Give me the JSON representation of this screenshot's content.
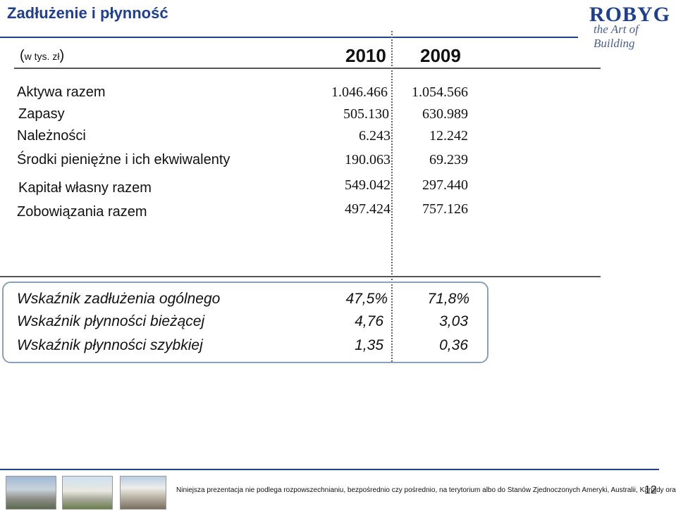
{
  "header": {
    "title": "Zadłużenie i płynność",
    "logo_brand": "ROBYG",
    "logo_tagline": "the Art of Building"
  },
  "table": {
    "unit_open": "(",
    "unit_text": "w tys. zł",
    "unit_close": ")",
    "year_a": "2010",
    "year_b": "2009",
    "rows": [
      {
        "label": "Aktywa razem",
        "a": "1.046.466",
        "b": "1.054.566"
      },
      {
        "label": "Zapasy",
        "a": "505.130",
        "b": "630.989"
      },
      {
        "label": "Należności",
        "a": "6.243",
        "b": "12.242"
      },
      {
        "label": "Środki pieniężne i ich ekwiwalenty",
        "a": "190.063",
        "b": "69.239"
      },
      {
        "label": "Kapitał własny razem",
        "a": "549.042",
        "b": "297.440"
      },
      {
        "label": "Zobowiązania razem",
        "a": "497.424",
        "b": "757.126"
      }
    ]
  },
  "ratios": [
    {
      "label": "Wskaźnik zadłużenia ogólnego",
      "a": "47,5%",
      "b": "71,8%"
    },
    {
      "label": "Wskaźnik płynności bieżącej",
      "a": "4,76",
      "b": "3,03"
    },
    {
      "label": "Wskaźnik płynności szybkiej",
      "a": "1,35",
      "b": "0,36"
    }
  ],
  "footer": {
    "disclaimer": "Niniejsza prezentacja nie podlega rozpowszechnianiu, bezpośrednio czy pośrednio, na terytorium albo do Stanów Zjednoczonych Ameryki, Australii, Kanady oraz Japonii.",
    "page_number": "12"
  },
  "colors": {
    "brand": "#1f3f8f",
    "box_border": "#8aa0b8"
  }
}
